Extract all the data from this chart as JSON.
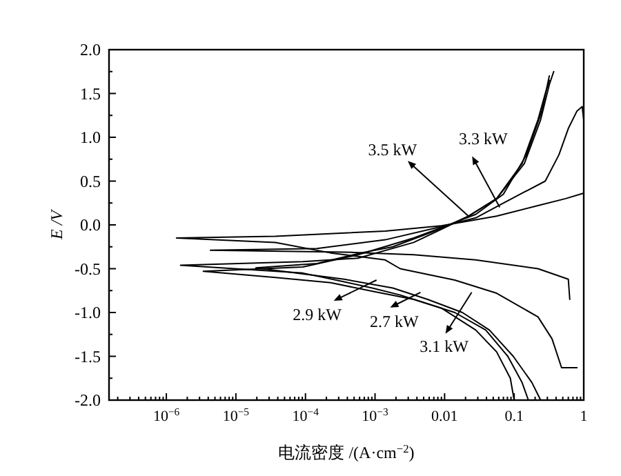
{
  "chart_data": {
    "type": "line",
    "xlabel": "电流密度 /(A·cm$^{−2}$)",
    "ylabel": "E /V",
    "log": "x",
    "grid": false,
    "marker": "none",
    "line_style": "solid",
    "xlim": [
      1.5e-07,
      1
    ],
    "ylim": [
      -2,
      2
    ],
    "xticks": [
      {
        "value": 1e-06,
        "label": "10$^{−6}$"
      },
      {
        "value": 1e-05,
        "label": "10$^{−5}$"
      },
      {
        "value": 0.0001,
        "label": "10$^{−4}$"
      },
      {
        "value": 0.001,
        "label": "10$^{−3}$"
      },
      0.01,
      0.1,
      1
    ],
    "yticks": [
      {
        "value": -2,
        "label": "-2.0"
      },
      {
        "value": -1.5,
        "label": "-1.5"
      },
      {
        "value": -1,
        "label": "-1.0"
      },
      {
        "value": -0.5,
        "label": "-0.5"
      },
      {
        "value": 0,
        "label": "0.0"
      },
      {
        "value": 0.5,
        "label": "0.5"
      },
      {
        "value": 1,
        "label": "1.0"
      },
      {
        "value": 1.5,
        "label": "1.5"
      },
      {
        "value": 2,
        "label": "2.0"
      }
    ],
    "series": [
      {
        "color": "#000000",
        "x": [
          0.8,
          0.48,
          0.35,
          0.22,
          0.056,
          0.014,
          0.0023,
          0.0014,
          0.00072,
          0.00023,
          3.7e-05,
          1.4e-06,
          3.7e-05,
          0.0014,
          0.009,
          0.056,
          0.22,
          0.55,
          0.98
        ],
        "values": [
          -1.63,
          -1.63,
          -1.3,
          -1.05,
          -0.78,
          -0.63,
          -0.5,
          -0.4,
          -0.37,
          -0.32,
          -0.2,
          -0.15,
          -0.13,
          -0.07,
          -0.01,
          0.1,
          0.22,
          0.3,
          0.36
        ]
      },
      {
        "color": "#000000",
        "x": [
          0.63,
          0.6,
          0.22,
          0.028,
          0.0036,
          0.00036,
          4.3e-06,
          0.000146,
          0.0014,
          0.009,
          0.028,
          0.07,
          0.28,
          0.44,
          0.6,
          0.8,
          0.95,
          1.0
        ],
        "values": [
          -0.85,
          -0.62,
          -0.5,
          -0.4,
          -0.34,
          -0.31,
          -0.29,
          -0.27,
          -0.17,
          -0.02,
          0.08,
          0.25,
          0.5,
          0.8,
          1.1,
          1.3,
          1.35,
          1.2
        ]
      },
      {
        "color": "#000000",
        "x": [
          0.1,
          0.088,
          0.056,
          0.028,
          0.009,
          0.0023,
          0.00091,
          0.00036,
          9.2e-05,
          1.6e-06,
          9.2e-05,
          0.00057,
          0.0036,
          0.009,
          0.022,
          0.056,
          0.14,
          0.24,
          0.32,
          0.37
        ],
        "values": [
          -2.0,
          -1.75,
          -1.45,
          -1.2,
          -0.95,
          -0.8,
          -0.72,
          -0.65,
          -0.55,
          -0.46,
          -0.42,
          -0.38,
          -0.2,
          -0.05,
          0.1,
          0.3,
          0.7,
          1.2,
          1.6,
          1.75
        ]
      },
      {
        "color": "#000000",
        "x": [
          0.16,
          0.13,
          0.081,
          0.039,
          0.014,
          0.0036,
          0.00095,
          0.00023,
          3.7e-05,
          3.4e-06,
          9.2e-05,
          0.00057,
          0.0036,
          0.009,
          0.028,
          0.07,
          0.15,
          0.25,
          0.32
        ],
        "values": [
          -2.0,
          -1.8,
          -1.5,
          -1.2,
          -1.0,
          -0.85,
          -0.76,
          -0.66,
          -0.6,
          -0.53,
          -0.48,
          -0.34,
          -0.15,
          -0.03,
          0.12,
          0.35,
          0.8,
          1.3,
          1.7
        ]
      },
      {
        "color": "#000000",
        "x": [
          0.24,
          0.18,
          0.097,
          0.044,
          0.018,
          0.0057,
          0.0018,
          0.00036,
          1.94e-05,
          0.000146,
          0.00063,
          0.0018,
          0.0057,
          0.009,
          0.022,
          0.056,
          0.13,
          0.22,
          0.28,
          0.32
        ],
        "values": [
          -2.0,
          -1.8,
          -1.5,
          -1.2,
          -1.0,
          -0.85,
          -0.72,
          -0.62,
          -0.49,
          -0.44,
          -0.32,
          -0.25,
          -0.1,
          -0.04,
          0.1,
          0.3,
          0.7,
          1.2,
          1.5,
          1.65
        ]
      }
    ],
    "annotations": [
      {
        "text": "3.3 kW",
        "x": 0.062,
        "y": 0.2
      },
      {
        "text": "3.5 kW",
        "x": 0.022,
        "y": 0.1
      },
      {
        "text": "2.9 kW",
        "x": 0.00105,
        "y": -0.63
      },
      {
        "text": "2.7 kW",
        "x": 0.0045,
        "y": -0.77
      },
      {
        "text": "3.1 kW",
        "x": 0.0245,
        "y": -0.77
      }
    ]
  }
}
